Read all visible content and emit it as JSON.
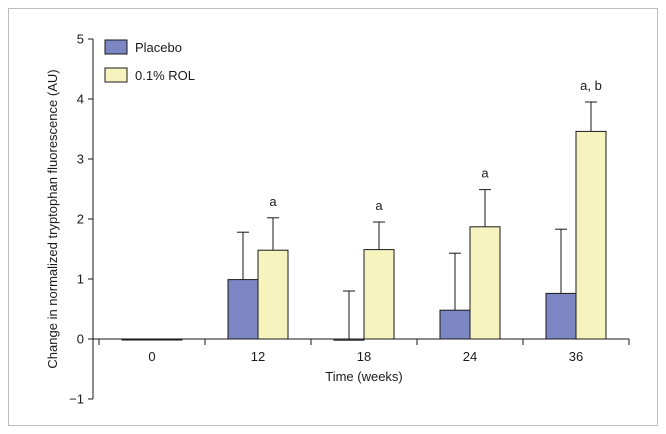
{
  "chart_data": {
    "type": "bar",
    "title": "",
    "xlabel": "Time (weeks)",
    "ylabel": "Change in normalized tryptophan fluorescence (AU)",
    "categories": [
      "0",
      "12",
      "18",
      "24",
      "36"
    ],
    "ylim": [
      -1,
      5
    ],
    "yticks": [
      "-1",
      "0",
      "1",
      "2",
      "3",
      "4",
      "5"
    ],
    "grid": false,
    "legend_position": "top-left",
    "series": [
      {
        "name": "Placebo",
        "color": "#7c86c2",
        "values": [
          0.0,
          0.99,
          -0.02,
          0.48,
          0.76
        ],
        "error_upper": [
          0.0,
          1.78,
          0.8,
          1.43,
          1.83
        ]
      },
      {
        "name": "0.1% ROL",
        "color": "#f7f3bf",
        "values": [
          0.0,
          1.48,
          1.49,
          1.87,
          3.46
        ],
        "error_upper": [
          0.0,
          2.02,
          1.95,
          2.49,
          3.95
        ]
      }
    ],
    "annotations": [
      "",
      "a",
      "a",
      "a",
      "a, b"
    ]
  }
}
